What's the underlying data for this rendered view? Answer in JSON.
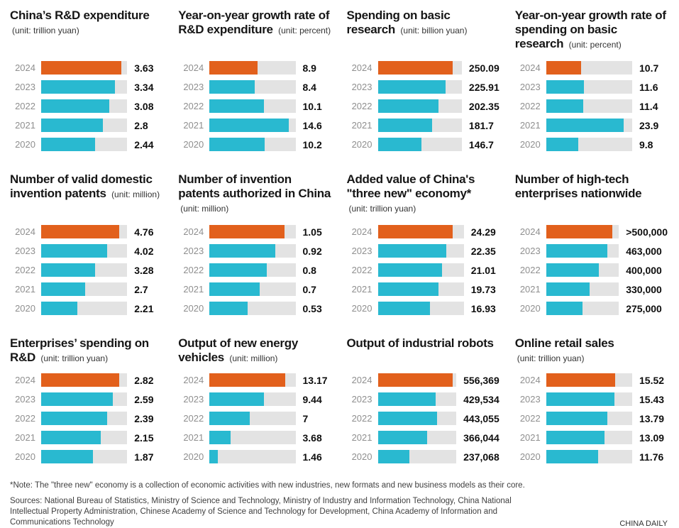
{
  "colors": {
    "highlight": "#e2601c",
    "bar": "#29b9d0",
    "track": "#e3e3e3"
  },
  "chart_data": [
    {
      "type": "bar",
      "title": "China’s R&D expenditure",
      "unit": "(unit: trillion yuan)",
      "categories": [
        "2024",
        "2023",
        "2022",
        "2021",
        "2020"
      ],
      "values": [
        3.63,
        3.34,
        3.08,
        2.8,
        2.44
      ],
      "labels": [
        "3.63",
        "3.34",
        "3.08",
        "2.8",
        "2.44"
      ],
      "xmax": 3.9
    },
    {
      "type": "bar",
      "title": "Year-on-year growth rate of R&D expenditure",
      "unit": "(unit: percent)",
      "categories": [
        "2024",
        "2023",
        "2022",
        "2021",
        "2020"
      ],
      "values": [
        8.9,
        8.4,
        10.1,
        14.6,
        10.2
      ],
      "labels": [
        "8.9",
        "8.4",
        "10.1",
        "14.6",
        "10.2"
      ],
      "xmax": 15.9
    },
    {
      "type": "bar",
      "title": "Spending on basic research",
      "unit": "(unit: billion yuan)",
      "categories": [
        "2024",
        "2023",
        "2022",
        "2021",
        "2020"
      ],
      "values": [
        250.09,
        225.91,
        202.35,
        181.7,
        146.7
      ],
      "labels": [
        "250.09",
        "225.91",
        "202.35",
        "181.7",
        "146.7"
      ],
      "xmax": 281
    },
    {
      "type": "bar",
      "title": "Year-on-year growth rate of spending on basic research",
      "unit": "(unit: percent)",
      "categories": [
        "2024",
        "2023",
        "2022",
        "2021",
        "2020"
      ],
      "values": [
        10.7,
        11.6,
        11.4,
        23.9,
        9.8
      ],
      "labels": [
        "10.7",
        "11.6",
        "11.4",
        "23.9",
        "9.8"
      ],
      "xmax": 26.5
    },
    {
      "type": "bar",
      "title": "Number of valid domestic invention patents",
      "unit": "(unit: million)",
      "categories": [
        "2024",
        "2023",
        "2022",
        "2021",
        "2020"
      ],
      "values": [
        4.76,
        4.02,
        3.28,
        2.7,
        2.21
      ],
      "labels": [
        "4.76",
        "4.02",
        "3.28",
        "2.7",
        "2.21"
      ],
      "xmax": 5.25
    },
    {
      "type": "bar",
      "title": "Number of invention patents authorized in China",
      "unit": "(unit: million)",
      "categories": [
        "2024",
        "2023",
        "2022",
        "2021",
        "2020"
      ],
      "values": [
        1.05,
        0.92,
        0.8,
        0.7,
        0.53
      ],
      "labels": [
        "1.05",
        "0.92",
        "0.8",
        "0.7",
        "0.53"
      ],
      "xmax": 1.2
    },
    {
      "type": "bar",
      "title": "Added value of China's \"three new\" economy*",
      "unit": "(unit: trillion yuan)",
      "categories": [
        "2024",
        "2023",
        "2022",
        "2021",
        "2020"
      ],
      "values": [
        24.29,
        22.35,
        21.01,
        19.73,
        16.93
      ],
      "labels": [
        "24.29",
        "22.35",
        "21.01",
        "19.73",
        "16.93"
      ],
      "xmax": 28
    },
    {
      "type": "bar",
      "title": "Number of high-tech enterprises nationwide",
      "unit": "",
      "categories": [
        "2024",
        "2023",
        "2022",
        "2021",
        "2020"
      ],
      "values": [
        500000,
        463000,
        400000,
        330000,
        275000
      ],
      "labels": [
        ">500,000",
        "463,000",
        "400,000",
        "330,000",
        "275,000"
      ],
      "xmax": 552000
    },
    {
      "type": "bar",
      "title": "Enterprises’ spending on R&D",
      "unit": "(unit: trillion yuan)",
      "categories": [
        "2024",
        "2023",
        "2022",
        "2021",
        "2020"
      ],
      "values": [
        2.82,
        2.59,
        2.39,
        2.15,
        1.87
      ],
      "labels": [
        "2.82",
        "2.59",
        "2.39",
        "2.15",
        "1.87"
      ],
      "xmax": 3.1
    },
    {
      "type": "bar",
      "title": "Output of new energy vehicles",
      "unit": "(unit: million)",
      "categories": [
        "2024",
        "2023",
        "2022",
        "2021",
        "2020"
      ],
      "values": [
        13.17,
        9.44,
        7,
        3.68,
        1.46
      ],
      "labels": [
        "13.17",
        "9.44",
        "7",
        "3.68",
        "1.46"
      ],
      "xmax": 14.9
    },
    {
      "type": "bar",
      "title": "Output of industrial robots",
      "unit": "",
      "categories": [
        "2024",
        "2023",
        "2022",
        "2021",
        "2020"
      ],
      "values": [
        556369,
        429534,
        443055,
        366044,
        237068
      ],
      "labels": [
        "556,369",
        "429,534",
        "443,055",
        "366,044",
        "237,068"
      ],
      "xmax": 585000
    },
    {
      "type": "bar",
      "title": "Online retail sales",
      "unit": "(unit: trillion yuan)",
      "categories": [
        "2024",
        "2023",
        "2022",
        "2021",
        "2020"
      ],
      "values": [
        15.52,
        15.43,
        13.79,
        13.09,
        11.76
      ],
      "labels": [
        "15.52",
        "15.43",
        "13.79",
        "13.09",
        "11.76"
      ],
      "xmax": 19.4
    }
  ],
  "footer": {
    "note": "*Note: The \"three new\" economy is a collection of economic activities with new industries, new formats and new business models as their core.",
    "sources": "Sources:  National Bureau of Statistics, Ministry of Science and Technology, Ministry of Industry and Information Technology, China National Intellectual Property Administration, Chinese Academy of Science and Technology for Development, China Academy of Information and Communications Technology",
    "brand": "CHINA DAILY"
  }
}
